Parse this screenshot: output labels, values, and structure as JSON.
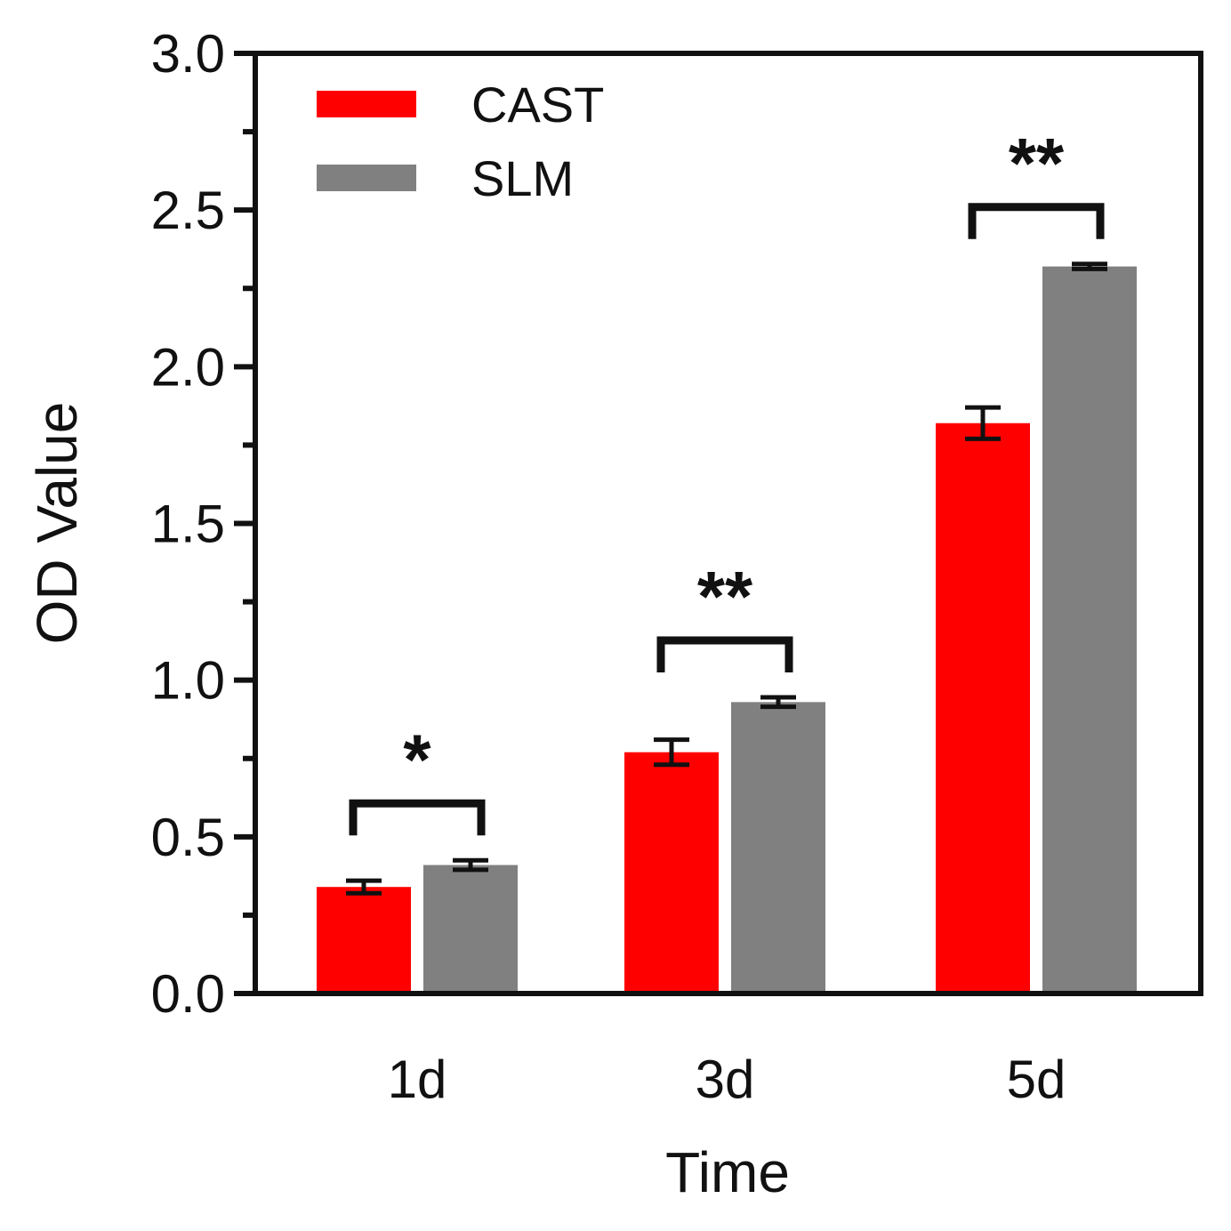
{
  "chart_data": {
    "type": "bar",
    "title": "",
    "xlabel": "Time",
    "ylabel": "OD Value",
    "ylim": [
      0,
      3.0
    ],
    "yticks": [
      "0.0",
      "0.5",
      "1.0",
      "1.5",
      "2.0",
      "2.5",
      "3.0"
    ],
    "categories": [
      "1d",
      "3d",
      "5d"
    ],
    "series": [
      {
        "name": "CAST",
        "color": "#ff0000",
        "values": [
          0.34,
          0.77,
          1.82
        ],
        "errors": [
          0.02,
          0.04,
          0.05
        ]
      },
      {
        "name": "SLM",
        "color": "#808080",
        "values": [
          0.41,
          0.93,
          2.32
        ],
        "errors": [
          0.015,
          0.015,
          0.008
        ]
      }
    ],
    "significance": [
      "*",
      "**",
      "**"
    ],
    "legend_position": "top-left",
    "grid": false
  }
}
